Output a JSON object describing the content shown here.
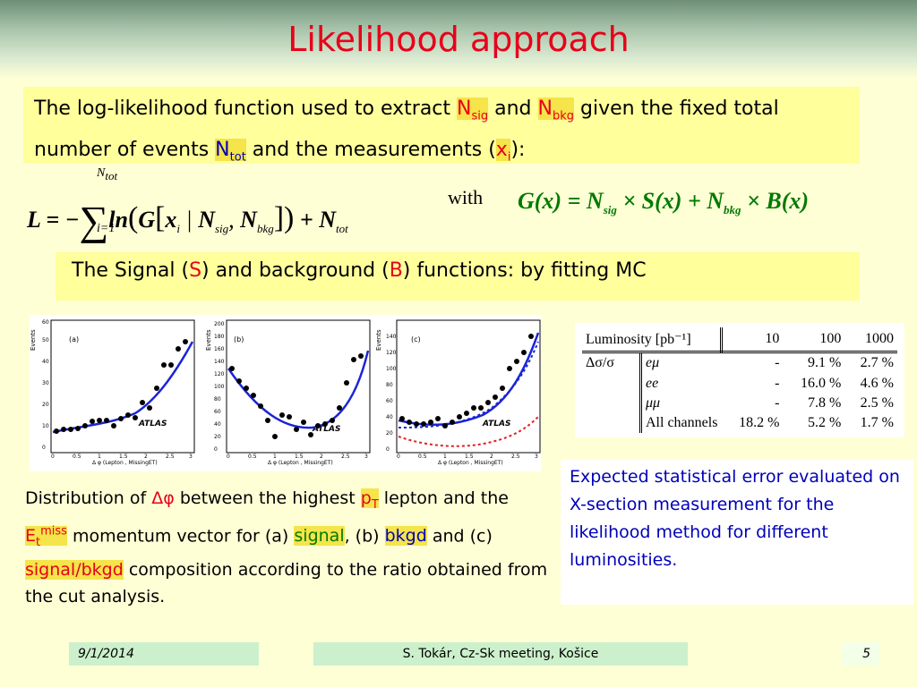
{
  "title": "Likelihood approach",
  "intro": {
    "part1": "The log-likelihood function used to extract ",
    "nsig": "N",
    "nsig_sub": "sig",
    "and": " and ",
    "nbkg": "N",
    "nbkg_sub": "bkg",
    "part2": " given the fixed total number of events ",
    "ntot": "N",
    "ntot_sub": "tot",
    "part3": " and the measurements (",
    "x": "x",
    "x_sub": "i",
    "part4": "):"
  },
  "formula": {
    "lhs": "L = −",
    "sum_top": "N",
    "sum_top_sub": "tot",
    "sum_bottom": "i=1",
    "body": "ln",
    "gx": "G",
    "xi": "x",
    "xi_sub": "i",
    "bar": " | ",
    "n1": "N",
    "n1_sub": "sig",
    "comma": ", ",
    "n2": "N",
    "n2_sub": "bkg",
    "plus": " + N",
    "plus_sub": "tot",
    "with": "with",
    "rhs_a": "G(x) = N",
    "rhs_a_sub": "sig",
    "rhs_b": " × S(x) + N",
    "rhs_b_sub": "bkg",
    "rhs_c": " × B(x)"
  },
  "signal_line": {
    "a": "The Signal (",
    "s": "S",
    "b": ") and background (",
    "bk": "B",
    "c": ") functions: by fitting  MC"
  },
  "plots": [
    {
      "tag": "(a)",
      "ylabel": "Events",
      "xlabel": "Δ φ (Lepton , MissingET)",
      "brand": "ATLAS",
      "yticks": [
        "0",
        "10",
        "20",
        "30",
        "40",
        "50",
        "60"
      ],
      "xticks": [
        "0",
        "0.5",
        "1",
        "1.5",
        "2",
        "2.5",
        "3"
      ]
    },
    {
      "tag": "(b)",
      "ylabel": "Events",
      "xlabel": "Δ φ (Lepton , MissingET)",
      "brand": "ATLAS",
      "yticks": [
        "0",
        "20",
        "40",
        "60",
        "80",
        "100",
        "120",
        "140",
        "160",
        "180",
        "200"
      ],
      "xticks": [
        "0",
        "0.5",
        "1",
        "1.5",
        "2",
        "2.5",
        "3"
      ]
    },
    {
      "tag": "(c)",
      "ylabel": "Events",
      "xlabel": "Δ φ (Lepton , MissingET)",
      "brand": "ATLAS",
      "yticks": [
        "0",
        "20",
        "40",
        "60",
        "80",
        "100",
        "120",
        "140"
      ],
      "xticks": [
        "0",
        "0.5",
        "1",
        "1.5",
        "2",
        "2.5",
        "3"
      ]
    }
  ],
  "caption": {
    "a": "Distribution of ",
    "dphi": "Δφ",
    "b": " between the highest ",
    "pt": "p",
    "pt_sub": "T",
    "c": " lepton and the ",
    "et": "E",
    "et_sub": "t",
    "et_sup": "miss",
    "d": " momentum vector for (a) ",
    "signal": "signal",
    "e": ", (b) ",
    "bkgd": "bkgd",
    "f": " and (c) ",
    "sb": "signal/bkgd",
    "g": " composition according to the ratio obtained from the cut analysis."
  },
  "lumi_table": {
    "header": [
      "Luminosity [pb⁻¹]",
      "10",
      "100",
      "1000"
    ],
    "row_label": "Δσ/σ",
    "rows": [
      [
        "eμ",
        "-",
        "9.1 %",
        "2.7 %"
      ],
      [
        "ee",
        "-",
        "16.0 %",
        "4.6 %"
      ],
      [
        "μμ",
        "-",
        "7.8 %",
        "2.5 %"
      ],
      [
        "All channels",
        "18.2 %",
        "5.2 %",
        "1.7 %"
      ]
    ]
  },
  "stat_text": "Expected statistical error evaluated on X-section measurement for the likelihood method for different luminosities.",
  "footer": {
    "date": "9/1/2014",
    "center": "S. Tokár, Cz-Sk meeting, Košice",
    "page": "5"
  },
  "colors": {
    "title": "#e8001a",
    "highlight": "#f5e44a",
    "formula_green": "#007a00",
    "stat_blue": "#0000b8",
    "footer": "#ccf0cc"
  }
}
